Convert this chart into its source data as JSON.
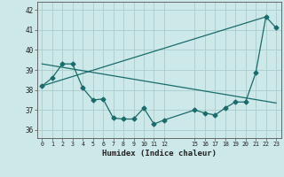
{
  "xlabel": "Humidex (Indice chaleur)",
  "bg_color": "#cce8e8",
  "line_color": "#1a6b6b",
  "grid_color": "#aacccc",
  "ylim": [
    35.6,
    42.4
  ],
  "xlim": [
    -0.5,
    23.5
  ],
  "x_ticks": [
    0,
    1,
    2,
    3,
    4,
    5,
    6,
    7,
    8,
    9,
    10,
    11,
    12,
    15,
    16,
    17,
    18,
    19,
    20,
    21,
    22,
    23
  ],
  "x_tick_labels": [
    "0",
    "1",
    "2",
    "3",
    "4",
    "5",
    "6",
    "7",
    "8",
    "9",
    "10",
    "11",
    "12",
    "15",
    "16",
    "17",
    "18",
    "19",
    "20",
    "21",
    "22",
    "23"
  ],
  "y_ticks": [
    36,
    37,
    38,
    39,
    40,
    41,
    42
  ],
  "series1_x": [
    0,
    1,
    2,
    3,
    4,
    5,
    6,
    7,
    8,
    9,
    10,
    11,
    12,
    15,
    16,
    17,
    18,
    19,
    20,
    21,
    22,
    23
  ],
  "series1_y": [
    38.2,
    38.6,
    39.3,
    39.3,
    38.1,
    37.5,
    37.55,
    36.6,
    36.55,
    36.55,
    37.1,
    36.3,
    36.5,
    37.0,
    36.85,
    36.75,
    37.1,
    37.4,
    37.4,
    38.85,
    41.65,
    41.1
  ],
  "series2_x": [
    0,
    22
  ],
  "series2_y": [
    38.2,
    41.65
  ],
  "series3_x": [
    0,
    23
  ],
  "series3_y": [
    39.3,
    37.35
  ],
  "markersize": 2.5,
  "linewidth": 0.9
}
